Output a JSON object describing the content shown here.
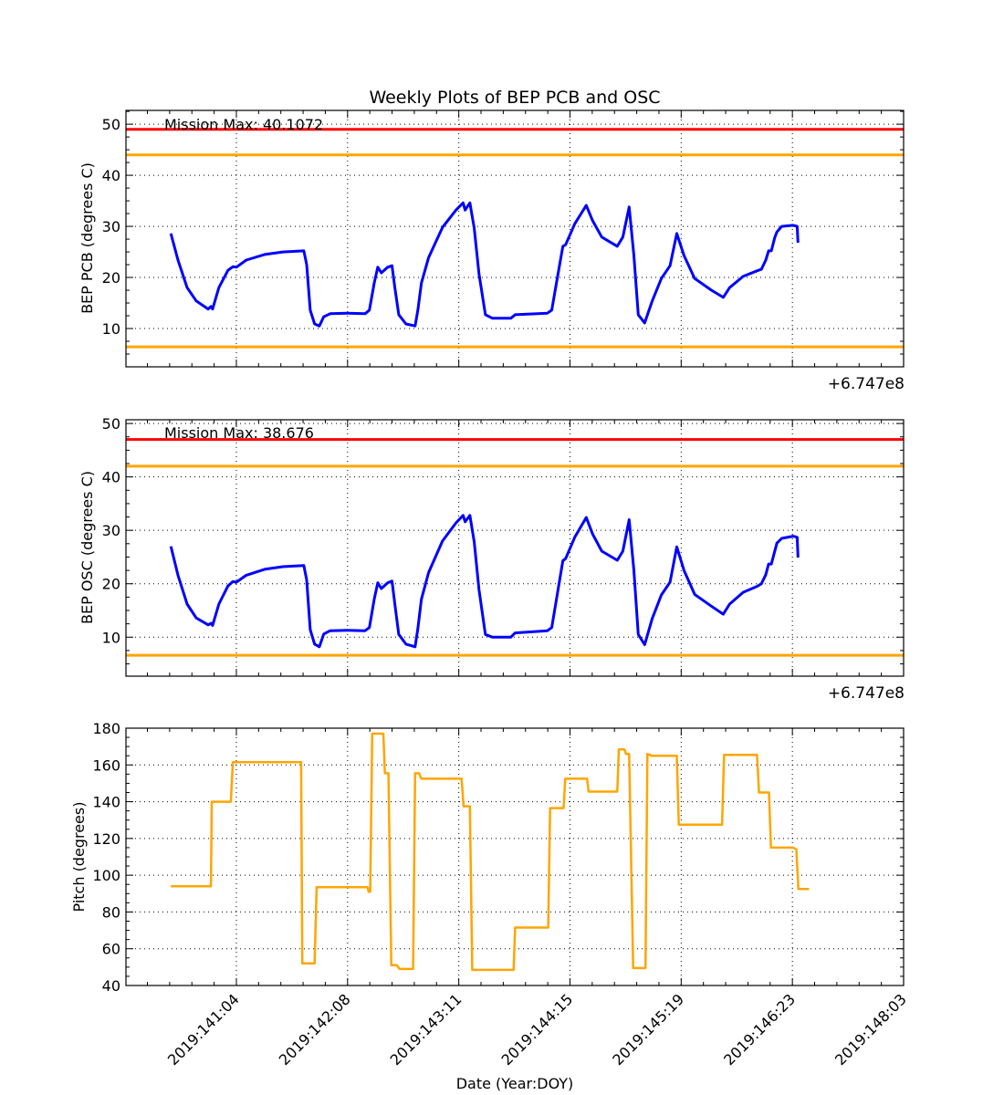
{
  "chart_data": [
    {
      "type": "line",
      "title": "Weekly Plots of BEP PCB and OSC",
      "ylabel": "BEP PCB (degrees C)",
      "xlabel": "",
      "offset_label": "+6.747e8",
      "annotation": "Mission Max: 40.1072",
      "ylim": [
        2.5,
        52.7
      ],
      "yticks": [
        10,
        20,
        30,
        40,
        50
      ],
      "grid": true,
      "x_units": "hours since 2019:141:04",
      "xlim": [
        -27.8,
        168
      ],
      "limit_lines": [
        {
          "value": 49.0,
          "color": "#ff0000"
        },
        {
          "value": 44.0,
          "color": "#ffa500"
        },
        {
          "value": 6.4,
          "color": "#ffa500"
        }
      ],
      "series": [
        {
          "name": "BEP PCB",
          "color": "#0000ff",
          "x": [
            -16.5,
            -14.7,
            -12.4,
            -10.1,
            -7.1,
            -6.4,
            -6.0,
            -4.4,
            -2.1,
            -0.9,
            0,
            2.5,
            7.1,
            11.7,
            17.0,
            17.7,
            18.6,
            19.7,
            20.9,
            22.0,
            23.6,
            27.8,
            32.4,
            33.5,
            34.7,
            35.6,
            36.5,
            38.1,
            39.2,
            39.9,
            40.9,
            42.7,
            45.0,
            45.7,
            46.6,
            48.4,
            51.9,
            55.3,
            57.1,
            57.6,
            58.8,
            59.9,
            61.1,
            62.7,
            64.5,
            69.1,
            70.2,
            78.3,
            79.4,
            81.0,
            82.2,
            82.9,
            85.2,
            88.1,
            89.7,
            92.0,
            95.9,
            97.3,
            98.9,
            100.1,
            101.2,
            102.8,
            104.7,
            107.0,
            109.2,
            110.9,
            112.7,
            115.4,
            119.6,
            122.6,
            124.2,
            127.6,
            131.1,
            132.2,
            133.3,
            134.0,
            134.7,
            135.6,
            136.1,
            137.3,
            140.2,
            141.2,
            141.4
          ],
          "y": [
            28.6,
            23.4,
            18.0,
            15.4,
            13.8,
            14.3,
            13.8,
            18.0,
            21.4,
            22.1,
            22.0,
            23.4,
            24.5,
            25.0,
            25.2,
            22.5,
            13.6,
            10.9,
            10.5,
            12.3,
            12.9,
            13.0,
            12.9,
            13.6,
            18.9,
            22.0,
            20.9,
            22.0,
            22.3,
            18.0,
            12.7,
            10.9,
            10.5,
            13.6,
            18.9,
            23.9,
            29.8,
            33.2,
            34.6,
            33.2,
            34.6,
            29.6,
            20.7,
            12.7,
            12.0,
            12.0,
            12.7,
            13.0,
            13.6,
            20.7,
            26.1,
            26.4,
            30.5,
            34.1,
            31.1,
            27.9,
            26.1,
            27.9,
            33.8,
            24.3,
            12.7,
            11.1,
            15.4,
            19.8,
            22.3,
            28.6,
            24.3,
            19.8,
            17.5,
            16.1,
            18.0,
            20.2,
            21.3,
            21.6,
            23.4,
            25.2,
            25.2,
            27.9,
            28.9,
            30.0,
            30.2,
            30.0,
            26.8
          ]
        }
      ]
    },
    {
      "type": "line",
      "title": "",
      "ylabel": "BEP OSC (degrees C)",
      "xlabel": "",
      "offset_label": "+6.747e8",
      "annotation": "Mission Max: 38.676",
      "ylim": [
        2.7,
        50.7
      ],
      "yticks": [
        10,
        20,
        30,
        40,
        50
      ],
      "grid": true,
      "x_units": "hours since 2019:141:04",
      "xlim": [
        -27.8,
        168
      ],
      "limit_lines": [
        {
          "value": 47.0,
          "color": "#ff0000"
        },
        {
          "value": 42.0,
          "color": "#ffa500"
        },
        {
          "value": 6.6,
          "color": "#ffa500"
        }
      ],
      "series": [
        {
          "name": "BEP OSC",
          "color": "#0000ff",
          "x": [
            -16.5,
            -14.7,
            -12.4,
            -10.1,
            -7.1,
            -6.4,
            -6.0,
            -4.4,
            -2.1,
            -0.9,
            0,
            2.5,
            7.1,
            11.7,
            17.0,
            17.7,
            18.6,
            19.7,
            20.9,
            22.0,
            23.6,
            27.8,
            32.4,
            33.5,
            34.7,
            35.6,
            36.5,
            38.1,
            39.2,
            39.9,
            40.9,
            42.7,
            45.0,
            45.7,
            46.6,
            48.4,
            51.9,
            55.3,
            57.1,
            57.6,
            58.8,
            59.9,
            61.1,
            62.7,
            64.5,
            69.1,
            70.2,
            78.3,
            79.4,
            81.0,
            82.2,
            82.9,
            85.2,
            88.1,
            89.7,
            92.0,
            95.9,
            97.3,
            98.9,
            100.1,
            101.2,
            102.8,
            104.7,
            107.0,
            109.2,
            110.9,
            112.7,
            115.4,
            119.6,
            122.6,
            124.2,
            127.6,
            131.1,
            132.2,
            133.3,
            134.0,
            134.7,
            135.6,
            136.1,
            137.3,
            140.2,
            141.2,
            141.4
          ],
          "y": [
            27.0,
            21.6,
            16.2,
            13.6,
            12.3,
            12.6,
            12.2,
            16.2,
            19.6,
            20.4,
            20.3,
            21.6,
            22.7,
            23.2,
            23.4,
            20.7,
            11.4,
            8.7,
            8.2,
            10.6,
            11.2,
            11.3,
            11.2,
            11.8,
            17.1,
            20.2,
            19.1,
            20.2,
            20.5,
            16.2,
            10.5,
            8.7,
            8.2,
            11.6,
            17.1,
            22.1,
            28.0,
            31.4,
            32.8,
            31.6,
            32.8,
            27.8,
            18.9,
            10.5,
            10.0,
            10.0,
            10.8,
            11.2,
            11.8,
            18.9,
            24.3,
            24.7,
            28.7,
            32.4,
            29.3,
            26.1,
            24.4,
            26.1,
            32.0,
            22.5,
            10.5,
            8.6,
            13.5,
            17.9,
            20.3,
            26.9,
            22.5,
            18.0,
            15.8,
            14.3,
            16.2,
            18.4,
            19.5,
            20.0,
            21.7,
            23.7,
            23.7,
            26.2,
            27.6,
            28.5,
            28.9,
            28.7,
            24.9
          ]
        }
      ]
    },
    {
      "type": "line",
      "title": "",
      "ylabel": "Pitch (degrees)",
      "xlabel": "Date (Year:DOY)",
      "ylim": [
        40,
        180
      ],
      "yticks": [
        40,
        60,
        80,
        100,
        120,
        140,
        160,
        180
      ],
      "grid": true,
      "x_units": "hours since 2019:141:04",
      "xlim": [
        -27.8,
        168
      ],
      "xticks": [
        0,
        28,
        56,
        84,
        112,
        140,
        168
      ],
      "xtick_labels": [
        "2019:141:04",
        "2019:142:08",
        "2019:143:11",
        "2019:144:15",
        "2019:145:19",
        "2019:146:23",
        "2019:148:03"
      ],
      "series": [
        {
          "name": "Pitch",
          "color": "#ffa500",
          "x": [
            -16.5,
            -6.4,
            -6.2,
            -1.4,
            -0.9,
            16.3,
            16.6,
            19.7,
            20.2,
            33.0,
            33.3,
            33.7,
            34.2,
            37.0,
            37.4,
            38.3,
            39.0,
            40.4,
            41.1,
            44.5,
            45.0,
            46.0,
            46.6,
            56.7,
            57.2,
            58.8,
            59.4,
            69.8,
            70.2,
            78.5,
            79.0,
            82.4,
            82.8,
            88.3,
            88.7,
            95.9,
            96.3,
            97.7,
            98.1,
            98.9,
            99.9,
            103.0,
            103.5,
            104.5,
            110.9,
            111.4,
            122.3,
            122.8,
            131.1,
            131.6,
            134.1,
            134.6,
            140.2,
            141.0,
            141.5,
            144.2
          ],
          "y": [
            94,
            94,
            140,
            140,
            161.5,
            161.5,
            52,
            52,
            93.5,
            93.5,
            91,
            91,
            177,
            177,
            155.5,
            155.5,
            51,
            51,
            49,
            49,
            155.5,
            155.5,
            152.5,
            152.5,
            137.5,
            137.5,
            48.5,
            48.5,
            71.5,
            71.5,
            136.5,
            136.5,
            152.5,
            152.5,
            145.5,
            145.5,
            168.5,
            168.5,
            166,
            166,
            49.5,
            49.5,
            166,
            165,
            165,
            127.5,
            127.5,
            165.5,
            165.5,
            145,
            145,
            115,
            115,
            114,
            92.5,
            92.5
          ]
        }
      ]
    }
  ]
}
